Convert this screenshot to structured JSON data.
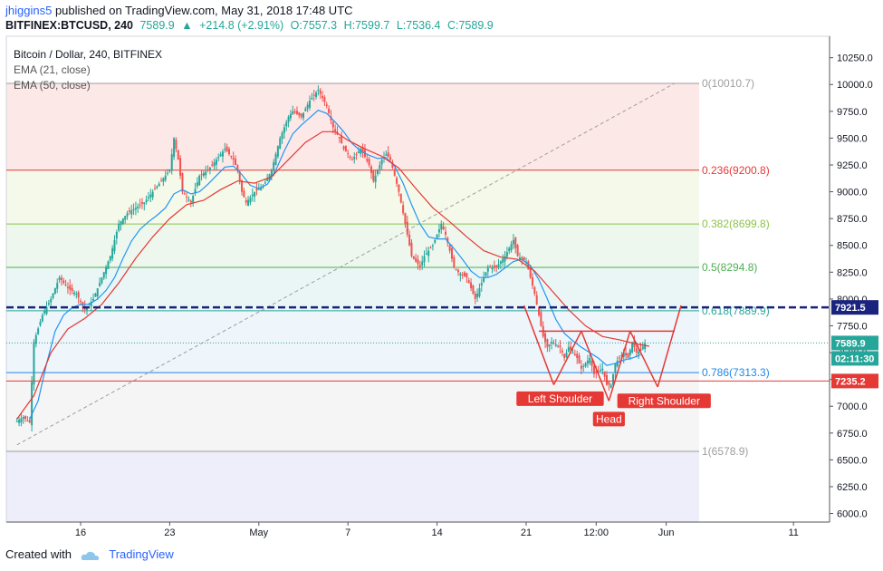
{
  "header": {
    "user": "jhiggins5",
    "published": "published on TradingView.com, May 31, 2018 17:48 UTC",
    "symbol": "BITFINEX:BTCUSD, 240",
    "last": "7589.9",
    "change": "+214.8 (+2.91%)",
    "open": "O:7557.3",
    "high": "H:7599.7",
    "low": "L:7536.4",
    "close": "C:7589.9"
  },
  "legend": {
    "title": "Bitcoin / Dollar, 240, BITFINEX",
    "ema21": "EMA (21, close)",
    "ema50": "EMA (50, close)"
  },
  "footer": {
    "created": "Created with",
    "brand": "TradingView"
  },
  "colors": {
    "up": "#26a69a",
    "down": "#ef5350",
    "ema21": "#2196f3",
    "ema50": "#e53935",
    "pattern": "#e53935",
    "hline": "#1a237e"
  },
  "chart_data": {
    "type": "candlestick",
    "ylim": [
      5920,
      10450
    ],
    "y_ticks": [
      6000,
      6250,
      6500,
      6750,
      7000,
      7250,
      7500,
      7750,
      8000,
      8250,
      8500,
      8750,
      9000,
      9250,
      9500,
      9750,
      10000,
      10250
    ],
    "y_tick_labels": [
      "6000.0",
      "6250.0",
      "6500.0",
      "6750.0",
      "7000.0",
      "7250.0",
      "7500.0",
      "7750.0",
      "8000.0",
      "8250.0",
      "8500.0",
      "8750.0",
      "9000.0",
      "9250.0",
      "9500.0",
      "9750.0",
      "10000.0",
      "10250.0"
    ],
    "x_labels": [
      {
        "t": 30,
        "text": "16"
      },
      {
        "t": 72,
        "text": "23"
      },
      {
        "t": 114,
        "text": "May"
      },
      {
        "t": 156,
        "text": "7"
      },
      {
        "t": 198,
        "text": "14"
      },
      {
        "t": 240,
        "text": "21"
      },
      {
        "t": 273,
        "text": "12:00"
      },
      {
        "t": 306,
        "text": "Jun"
      },
      {
        "t": 366,
        "text": "11"
      }
    ],
    "x_range": [
      -5,
      383
    ],
    "price_path": [
      [
        0,
        6860
      ],
      [
        3,
        6900
      ],
      [
        6,
        6850
      ],
      [
        8,
        7600
      ],
      [
        12,
        7850
      ],
      [
        16,
        8000
      ],
      [
        20,
        8200
      ],
      [
        24,
        8100
      ],
      [
        28,
        8050
      ],
      [
        32,
        7900
      ],
      [
        36,
        8000
      ],
      [
        40,
        8200
      ],
      [
        44,
        8400
      ],
      [
        48,
        8700
      ],
      [
        52,
        8800
      ],
      [
        56,
        8850
      ],
      [
        60,
        8900
      ],
      [
        64,
        9000
      ],
      [
        68,
        9100
      ],
      [
        72,
        9200
      ],
      [
        74,
        9500
      ],
      [
        76,
        9300
      ],
      [
        78,
        9000
      ],
      [
        82,
        8900
      ],
      [
        86,
        9150
      ],
      [
        90,
        9200
      ],
      [
        94,
        9300
      ],
      [
        98,
        9400
      ],
      [
        102,
        9300
      ],
      [
        104,
        9200
      ],
      [
        106,
        9000
      ],
      [
        108,
        8900
      ],
      [
        112,
        9000
      ],
      [
        116,
        9050
      ],
      [
        120,
        9200
      ],
      [
        124,
        9500
      ],
      [
        128,
        9700
      ],
      [
        130,
        9750
      ],
      [
        134,
        9700
      ],
      [
        138,
        9850
      ],
      [
        142,
        9950
      ],
      [
        146,
        9800
      ],
      [
        149,
        9600
      ],
      [
        152,
        9500
      ],
      [
        154,
        9400
      ],
      [
        158,
        9300
      ],
      [
        162,
        9400
      ],
      [
        166,
        9250
      ],
      [
        168,
        9100
      ],
      [
        172,
        9300
      ],
      [
        174,
        9350
      ],
      [
        176,
        9300
      ],
      [
        178,
        9150
      ],
      [
        180,
        9000
      ],
      [
        182,
        8800
      ],
      [
        184,
        8600
      ],
      [
        186,
        8400
      ],
      [
        190,
        8300
      ],
      [
        192,
        8400
      ],
      [
        196,
        8500
      ],
      [
        200,
        8700
      ],
      [
        202,
        8600
      ],
      [
        204,
        8450
      ],
      [
        206,
        8300
      ],
      [
        208,
        8250
      ],
      [
        212,
        8200
      ],
      [
        214,
        8100
      ],
      [
        216,
        8000
      ],
      [
        218,
        8100
      ],
      [
        220,
        8200
      ],
      [
        222,
        8300
      ],
      [
        226,
        8300
      ],
      [
        230,
        8400
      ],
      [
        234,
        8550
      ],
      [
        236,
        8400
      ],
      [
        240,
        8350
      ],
      [
        242,
        8200
      ],
      [
        244,
        8050
      ],
      [
        246,
        7850
      ],
      [
        248,
        7650
      ],
      [
        250,
        7550
      ],
      [
        252,
        7600
      ],
      [
        256,
        7550
      ],
      [
        258,
        7450
      ],
      [
        260,
        7550
      ],
      [
        262,
        7500
      ],
      [
        264,
        7450
      ],
      [
        266,
        7350
      ],
      [
        268,
        7400
      ],
      [
        270,
        7450
      ],
      [
        272,
        7300
      ],
      [
        276,
        7350
      ],
      [
        278,
        7200
      ],
      [
        280,
        7200
      ],
      [
        282,
        7400
      ],
      [
        284,
        7450
      ],
      [
        286,
        7500
      ],
      [
        288,
        7450
      ],
      [
        290,
        7600
      ],
      [
        292,
        7500
      ],
      [
        294,
        7520
      ],
      [
        296,
        7590
      ]
    ],
    "ema21_path": [
      [
        6,
        6880
      ],
      [
        10,
        7050
      ],
      [
        14,
        7400
      ],
      [
        18,
        7700
      ],
      [
        22,
        7850
      ],
      [
        26,
        7920
      ],
      [
        30,
        7950
      ],
      [
        34,
        7950
      ],
      [
        38,
        8000
      ],
      [
        42,
        8080
      ],
      [
        46,
        8200
      ],
      [
        50,
        8380
      ],
      [
        54,
        8540
      ],
      [
        58,
        8650
      ],
      [
        62,
        8720
      ],
      [
        66,
        8780
      ],
      [
        70,
        8850
      ],
      [
        74,
        8980
      ],
      [
        78,
        9020
      ],
      [
        82,
        8980
      ],
      [
        86,
        9000
      ],
      [
        90,
        9070
      ],
      [
        94,
        9150
      ],
      [
        98,
        9230
      ],
      [
        102,
        9240
      ],
      [
        106,
        9160
      ],
      [
        110,
        9060
      ],
      [
        114,
        9030
      ],
      [
        118,
        9070
      ],
      [
        122,
        9200
      ],
      [
        126,
        9380
      ],
      [
        130,
        9540
      ],
      [
        134,
        9620
      ],
      [
        138,
        9690
      ],
      [
        142,
        9760
      ],
      [
        146,
        9730
      ],
      [
        150,
        9650
      ],
      [
        154,
        9560
      ],
      [
        158,
        9450
      ],
      [
        162,
        9380
      ],
      [
        166,
        9340
      ],
      [
        170,
        9310
      ],
      [
        174,
        9320
      ],
      [
        178,
        9240
      ],
      [
        182,
        9080
      ],
      [
        186,
        8880
      ],
      [
        190,
        8700
      ],
      [
        194,
        8580
      ],
      [
        198,
        8560
      ],
      [
        202,
        8560
      ],
      [
        206,
        8470
      ],
      [
        210,
        8370
      ],
      [
        214,
        8260
      ],
      [
        218,
        8200
      ],
      [
        222,
        8200
      ],
      [
        226,
        8230
      ],
      [
        230,
        8290
      ],
      [
        234,
        8350
      ],
      [
        238,
        8370
      ],
      [
        242,
        8310
      ],
      [
        246,
        8180
      ],
      [
        250,
        8000
      ],
      [
        254,
        7810
      ],
      [
        258,
        7680
      ],
      [
        262,
        7610
      ],
      [
        266,
        7550
      ],
      [
        270,
        7500
      ],
      [
        274,
        7450
      ],
      [
        278,
        7380
      ],
      [
        282,
        7400
      ],
      [
        286,
        7430
      ],
      [
        290,
        7450
      ],
      [
        294,
        7480
      ]
    ],
    "ema50_path": [
      [
        0,
        6880
      ],
      [
        8,
        7100
      ],
      [
        16,
        7500
      ],
      [
        24,
        7720
      ],
      [
        32,
        7820
      ],
      [
        40,
        7950
      ],
      [
        48,
        8150
      ],
      [
        56,
        8380
      ],
      [
        64,
        8580
      ],
      [
        72,
        8750
      ],
      [
        80,
        8880
      ],
      [
        88,
        8920
      ],
      [
        96,
        9020
      ],
      [
        104,
        9100
      ],
      [
        112,
        9080
      ],
      [
        120,
        9140
      ],
      [
        128,
        9300
      ],
      [
        136,
        9460
      ],
      [
        144,
        9560
      ],
      [
        150,
        9560
      ],
      [
        156,
        9480
      ],
      [
        164,
        9400
      ],
      [
        172,
        9330
      ],
      [
        180,
        9220
      ],
      [
        188,
        9030
      ],
      [
        196,
        8850
      ],
      [
        204,
        8720
      ],
      [
        212,
        8580
      ],
      [
        220,
        8450
      ],
      [
        228,
        8390
      ],
      [
        236,
        8370
      ],
      [
        244,
        8260
      ],
      [
        252,
        8080
      ],
      [
        260,
        7900
      ],
      [
        268,
        7750
      ],
      [
        276,
        7650
      ],
      [
        284,
        7620
      ],
      [
        292,
        7580
      ],
      [
        298,
        7560
      ]
    ],
    "fib_levels": [
      {
        "label": "0(10010.7)",
        "value": 10010.7,
        "color": "#9e9e9e",
        "zone": "#fde8e8"
      },
      {
        "label": "0.236(9200.8)",
        "value": 9200.8,
        "color": "#e53935",
        "zone": "#f4f9ea"
      },
      {
        "label": "0.382(8699.8)",
        "value": 8699.8,
        "color": "#8bc34a",
        "zone": "#eef7ee"
      },
      {
        "label": "0.5(8294.8)",
        "value": 8294.8,
        "color": "#4caf50",
        "zone": "#eaf6f5"
      },
      {
        "label": "0.618(7889.9)",
        "value": 7889.9,
        "color": "#26a69a",
        "zone": "#eef5fb"
      },
      {
        "label": "0.786(7313.3)",
        "value": 7313.3,
        "color": "#1e88e5",
        "zone": "#f5f5f5"
      },
      {
        "label": "1(6578.9)",
        "value": 6578.9,
        "color": "#9e9e9e",
        "zone": "#eeedfa"
      }
    ],
    "fib_range_t": [
      0,
      310
    ],
    "fib_label_t": 312,
    "trend_line": [
      [
        0,
        6640
      ],
      [
        310,
        10010.7
      ]
    ],
    "hlines": [
      {
        "value": 7921.5,
        "label": "7921.5",
        "color": "#1a237e",
        "dashed": true,
        "bg": "#1a237e"
      },
      {
        "value": 7235.2,
        "label": "7235.2",
        "color": "#e53935",
        "dashed": false,
        "bg": "#e53935"
      }
    ],
    "last_price": {
      "value": 7589.9,
      "label": "7589.9",
      "countdown": "02:11:30",
      "bg": "#26a69a"
    },
    "pattern": {
      "lines": [
        [
          [
            239,
            7940
          ],
          [
            253,
            7200
          ]
        ],
        [
          [
            253,
            7200
          ],
          [
            266,
            7700
          ]
        ],
        [
          [
            266,
            7700
          ],
          [
            279,
            7050
          ]
        ],
        [
          [
            279,
            7050
          ],
          [
            289,
            7700
          ]
        ],
        [
          [
            289,
            7700
          ],
          [
            302,
            7180
          ]
        ],
        [
          [
            302,
            7180
          ],
          [
            313,
            7940
          ]
        ],
        [
          [
            246,
            7700
          ],
          [
            310,
            7700
          ]
        ]
      ],
      "labels": [
        {
          "text": "Left Shoulder",
          "t": 256,
          "value": 7070
        },
        {
          "text": "Head",
          "t": 279,
          "value": 6880
        },
        {
          "text": "Right Shoulder",
          "t": 305,
          "value": 7050
        }
      ]
    }
  }
}
